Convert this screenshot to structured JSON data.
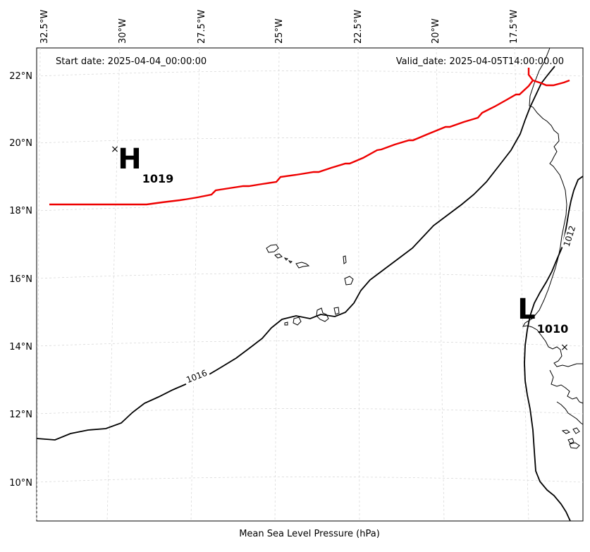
{
  "header": {
    "start_date": "Start date: 2025-04-04_00:00:00",
    "valid_date": "Valid_date: 2025-04-05T14:00:00.00"
  },
  "footer": {
    "title": "Mean Sea Level Pressure (hPa)"
  },
  "longitude_ticks": [
    "32.5°W",
    "30°W",
    "27.5°W",
    "25°W",
    "22.5°W",
    "20°W",
    "17.5°W"
  ],
  "latitude_ticks": [
    "22°N",
    "20°N",
    "18°N",
    "16°N",
    "14°N",
    "12°N",
    "10°N"
  ],
  "pressure_centers": [
    {
      "type": "high",
      "letter": "H",
      "value": "1019",
      "lon": -29.7,
      "lat": 19.8
    },
    {
      "type": "low",
      "letter": "L",
      "value": "1010",
      "lon": -16.0,
      "lat": 14.0
    }
  ],
  "isobars": [
    {
      "label": "1016"
    },
    {
      "label": "1012"
    }
  ],
  "colors": {
    "isobar": "#000000",
    "track": "#ee0000",
    "coast": "#000000",
    "grid": "#d9d9d9"
  }
}
